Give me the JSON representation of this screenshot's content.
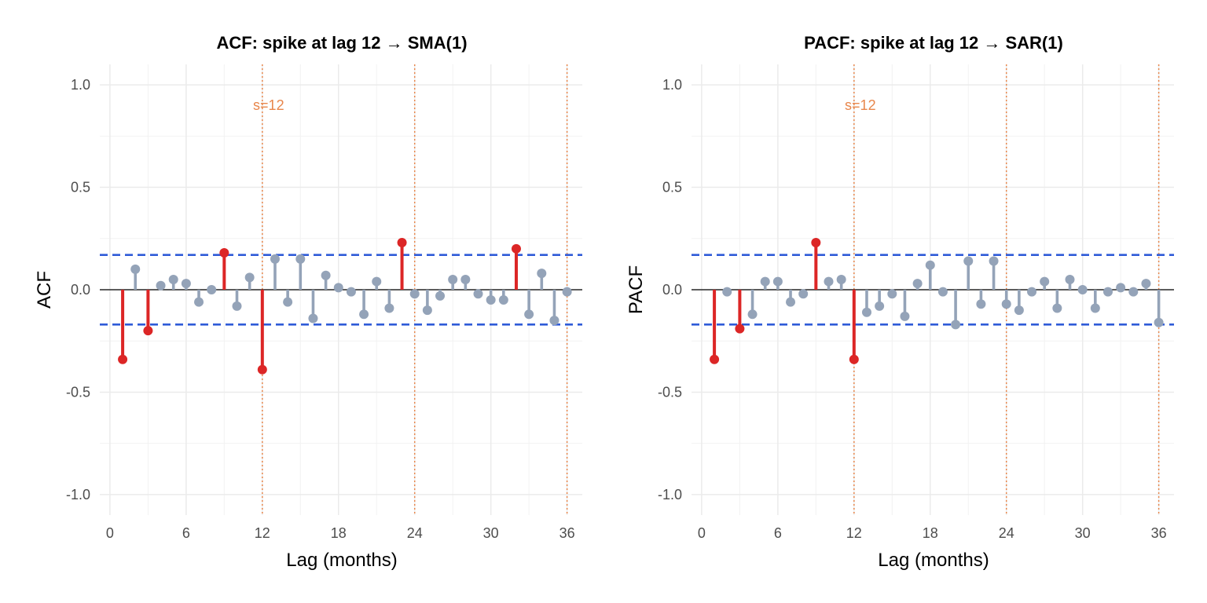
{
  "chart_data": [
    {
      "type": "lollipop",
      "title": "ACF: spike at lag 12 → SMA(1)",
      "xlabel": "Lag (months)",
      "ylabel": "ACF",
      "xlim": [
        -0.8,
        37.2
      ],
      "ylim": [
        -1.1,
        1.1
      ],
      "x_ticks": [
        0,
        6,
        12,
        18,
        24,
        30,
        36
      ],
      "x_tick_labels": [
        "0",
        "6",
        "12",
        "18",
        "24",
        "30",
        "36"
      ],
      "y_ticks": [
        1.0,
        0.5,
        0.0,
        -0.5,
        -1.0
      ],
      "y_tick_labels": [
        "1.0",
        "0.5",
        "0.0",
        "-0.5",
        "-1.0"
      ],
      "confidence_bound": 0.17,
      "seasonal_lags": [
        12,
        24,
        36
      ],
      "seasonal_label": "s=12",
      "seasonal_label_value": 0.9,
      "lags": [
        1,
        2,
        3,
        4,
        5,
        6,
        7,
        8,
        9,
        10,
        11,
        12,
        13,
        14,
        15,
        16,
        17,
        18,
        19,
        20,
        21,
        22,
        23,
        24,
        25,
        26,
        27,
        28,
        29,
        30,
        31,
        32,
        33,
        34,
        35,
        36
      ],
      "values": [
        -0.34,
        0.1,
        -0.2,
        0.02,
        0.05,
        0.03,
        -0.06,
        0.0,
        0.18,
        -0.08,
        0.06,
        -0.39,
        0.15,
        -0.06,
        0.15,
        -0.14,
        0.07,
        0.01,
        -0.01,
        -0.12,
        0.04,
        -0.09,
        0.23,
        -0.02,
        -0.1,
        -0.03,
        0.05,
        0.05,
        -0.02,
        -0.05,
        -0.05,
        0.2,
        -0.12,
        0.08,
        -0.15,
        -0.01
      ],
      "significant_color": "#dc2626",
      "normal_color": "#94a3b8",
      "bound_color": "#2f5bd8",
      "seasonal_color": "#e8864b"
    },
    {
      "type": "lollipop",
      "title": "PACF: spike at lag 12 → SAR(1)",
      "xlabel": "Lag (months)",
      "ylabel": "PACF",
      "xlim": [
        -0.8,
        37.2
      ],
      "ylim": [
        -1.1,
        1.1
      ],
      "x_ticks": [
        0,
        6,
        12,
        18,
        24,
        30,
        36
      ],
      "x_tick_labels": [
        "0",
        "6",
        "12",
        "18",
        "24",
        "30",
        "36"
      ],
      "y_ticks": [
        1.0,
        0.5,
        0.0,
        -0.5,
        -1.0
      ],
      "y_tick_labels": [
        "1.0",
        "0.5",
        "0.0",
        "-0.5",
        "-1.0"
      ],
      "confidence_bound": 0.17,
      "seasonal_lags": [
        12,
        24,
        36
      ],
      "seasonal_label": "s=12",
      "seasonal_label_value": 0.9,
      "lags": [
        1,
        2,
        3,
        4,
        5,
        6,
        7,
        8,
        9,
        10,
        11,
        12,
        13,
        14,
        15,
        16,
        17,
        18,
        19,
        20,
        21,
        22,
        23,
        24,
        25,
        26,
        27,
        28,
        29,
        30,
        31,
        32,
        33,
        34,
        35,
        36
      ],
      "values": [
        -0.34,
        -0.01,
        -0.19,
        -0.12,
        0.04,
        0.04,
        -0.06,
        -0.02,
        0.23,
        0.04,
        0.05,
        -0.34,
        -0.11,
        -0.08,
        -0.02,
        -0.13,
        0.03,
        0.12,
        -0.01,
        -0.17,
        0.14,
        -0.07,
        0.14,
        -0.07,
        -0.1,
        -0.01,
        0.04,
        -0.09,
        0.05,
        0.0,
        -0.09,
        -0.01,
        0.01,
        -0.01,
        0.03,
        -0.16
      ],
      "significant_color": "#dc2626",
      "normal_color": "#94a3b8",
      "bound_color": "#2f5bd8",
      "seasonal_color": "#e8864b"
    }
  ]
}
